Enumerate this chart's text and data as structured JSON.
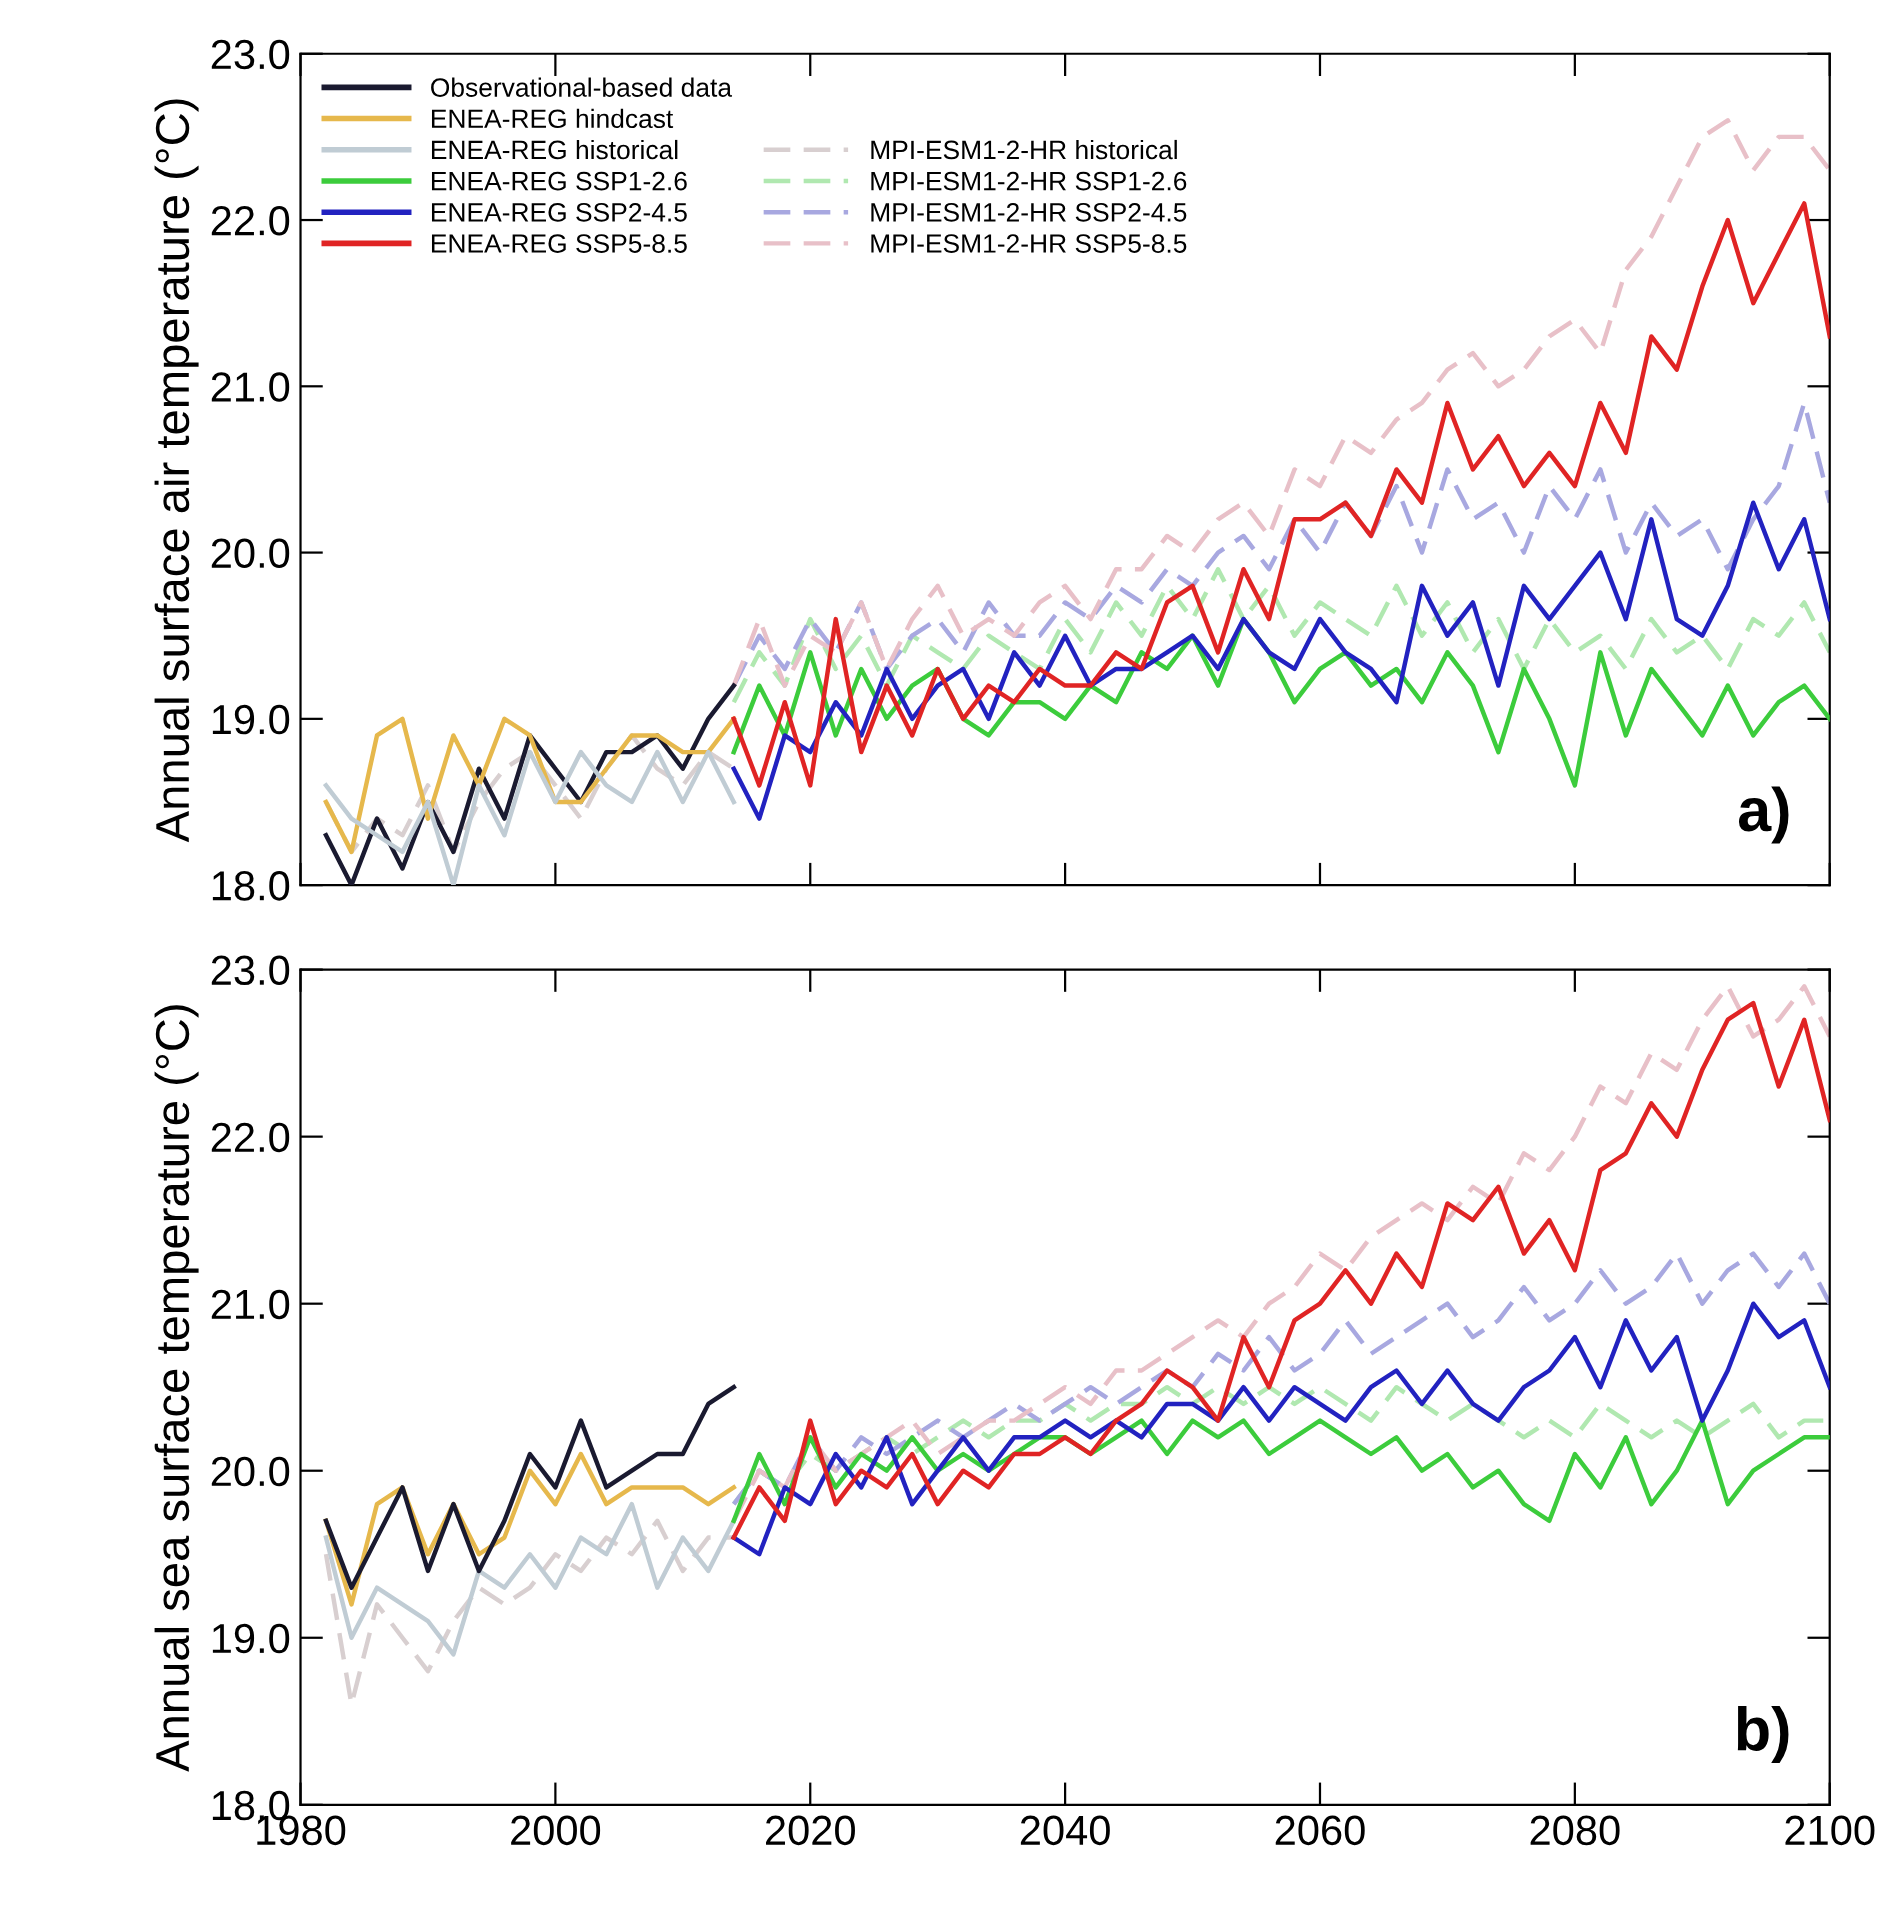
{
  "chart_data": [
    {
      "type": "line",
      "ylabel": "Annual surface air temperature (°C)",
      "xlim": [
        1980,
        2100
      ],
      "xticks": [
        1980,
        2000,
        2020,
        2040,
        2060,
        2080,
        2100
      ],
      "ylim": [
        18.0,
        23.0
      ],
      "yticks": [
        {
          "value": 18,
          "label": "18.0"
        },
        {
          "value": 19,
          "label": "19.0"
        },
        {
          "value": 20,
          "label": "20.0"
        },
        {
          "value": 21,
          "label": "21.0"
        },
        {
          "value": 22,
          "label": "22.0"
        },
        {
          "value": 23,
          "label": "23.0"
        }
      ],
      "tick_labels": "y",
      "grid": false,
      "legend": "top left",
      "annotations": [
        "a)"
      ],
      "x": [
        2014,
        2016,
        2018,
        2020,
        2022,
        2024,
        2026,
        2028,
        2030,
        2032,
        2034,
        2036,
        2038,
        2040,
        2042,
        2044,
        2046,
        2048,
        2050,
        2052,
        2054,
        2056,
        2058,
        2060,
        2062,
        2064,
        2066,
        2068,
        2070,
        2072,
        2074,
        2076,
        2078,
        2080,
        2082,
        2084,
        2086,
        2088,
        2090,
        2092,
        2094,
        2096,
        2098,
        2100
      ],
      "series": [
        {
          "name": "MPI-ESM1-2-HR historical",
          "color": "#d8cfd0",
          "line_style": "dashed",
          "x": [
            1982,
            1984,
            1986,
            1988,
            1990,
            1992,
            1994,
            1996,
            1998,
            2000,
            2002,
            2004,
            2006,
            2008,
            2010,
            2012,
            2014
          ],
          "values": [
            18.5,
            18.2,
            18.4,
            18.3,
            18.6,
            18.2,
            18.5,
            18.7,
            18.8,
            18.6,
            18.4,
            18.7,
            18.9,
            18.7,
            18.6,
            18.8,
            18.7
          ]
        },
        {
          "name": "MPI-ESM1-2-HR SSP1-2.6",
          "color": "#b0e8b0",
          "line_style": "dashed",
          "values": [
            19.1,
            19.4,
            19.2,
            19.6,
            19.3,
            19.5,
            19.2,
            19.5,
            19.4,
            19.3,
            19.5,
            19.4,
            19.3,
            19.6,
            19.4,
            19.7,
            19.5,
            19.8,
            19.6,
            19.9,
            19.6,
            19.8,
            19.5,
            19.7,
            19.6,
            19.5,
            19.8,
            19.5,
            19.7,
            19.4,
            19.6,
            19.3,
            19.6,
            19.4,
            19.5,
            19.3,
            19.6,
            19.4,
            19.5,
            19.3,
            19.6,
            19.5,
            19.7,
            19.4
          ]
        },
        {
          "name": "MPI-ESM1-2-HR SSP2-4.5",
          "color": "#a8a8e0",
          "line_style": "dashed",
          "values": [
            19.2,
            19.5,
            19.3,
            19.6,
            19.4,
            19.7,
            19.3,
            19.5,
            19.6,
            19.4,
            19.7,
            19.5,
            19.5,
            19.7,
            19.6,
            19.8,
            19.7,
            19.9,
            19.8,
            20.0,
            20.1,
            19.9,
            20.2,
            20.0,
            20.3,
            20.1,
            20.4,
            20.0,
            20.5,
            20.2,
            20.3,
            20.0,
            20.4,
            20.2,
            20.5,
            20.0,
            20.3,
            20.1,
            20.2,
            19.9,
            20.2,
            20.4,
            20.9,
            20.3
          ]
        },
        {
          "name": "MPI-ESM1-2-HR SSP5-8.5",
          "color": "#e8c0c8",
          "line_style": "dashed",
          "values": [
            19.2,
            19.6,
            19.2,
            19.5,
            19.4,
            19.7,
            19.3,
            19.6,
            19.8,
            19.5,
            19.6,
            19.5,
            19.7,
            19.8,
            19.6,
            19.9,
            19.9,
            20.1,
            20.0,
            20.2,
            20.3,
            20.1,
            20.5,
            20.4,
            20.7,
            20.6,
            20.8,
            20.9,
            21.1,
            21.2,
            21.0,
            21.1,
            21.3,
            21.4,
            21.2,
            21.7,
            21.9,
            22.2,
            22.5,
            22.6,
            22.3,
            22.5,
            22.5,
            22.3
          ]
        },
        {
          "name": "Observational-based data",
          "color": "#1a1a30",
          "line_style": "solid",
          "x": [
            1982,
            1984,
            1986,
            1988,
            1990,
            1992,
            1994,
            1996,
            1998,
            2000,
            2002,
            2004,
            2006,
            2008,
            2010,
            2012,
            2014
          ],
          "values": [
            18.3,
            18.0,
            18.4,
            18.1,
            18.5,
            18.2,
            18.7,
            18.4,
            18.9,
            18.7,
            18.5,
            18.8,
            18.8,
            18.9,
            18.7,
            19.0,
            19.2
          ]
        },
        {
          "name": "ENEA-REG hindcast",
          "color": "#e6b84c",
          "line_style": "solid",
          "x": [
            1982,
            1984,
            1986,
            1988,
            1990,
            1992,
            1994,
            1996,
            1998,
            2000,
            2002,
            2004,
            2006,
            2008,
            2010,
            2012,
            2014
          ],
          "values": [
            18.5,
            18.2,
            18.9,
            19.0,
            18.4,
            18.9,
            18.6,
            19.0,
            18.9,
            18.5,
            18.5,
            18.7,
            18.9,
            18.9,
            18.8,
            18.8,
            19.0
          ]
        },
        {
          "name": "ENEA-REG historical",
          "color": "#c0ccd4",
          "line_style": "solid",
          "x": [
            1982,
            1984,
            1986,
            1988,
            1990,
            1992,
            1994,
            1996,
            1998,
            2000,
            2002,
            2004,
            2006,
            2008,
            2010,
            2012,
            2014
          ],
          "values": [
            18.6,
            18.4,
            18.3,
            18.2,
            18.5,
            18.0,
            18.6,
            18.3,
            18.8,
            18.5,
            18.8,
            18.6,
            18.5,
            18.8,
            18.5,
            18.8,
            18.5
          ]
        },
        {
          "name": "ENEA-REG SSP1-2.6",
          "color": "#3ccc3c",
          "line_style": "solid",
          "values": [
            18.8,
            19.2,
            18.9,
            19.4,
            18.9,
            19.3,
            19.0,
            19.2,
            19.3,
            19.0,
            18.9,
            19.1,
            19.1,
            19.0,
            19.2,
            19.1,
            19.4,
            19.3,
            19.5,
            19.2,
            19.6,
            19.4,
            19.1,
            19.3,
            19.4,
            19.2,
            19.3,
            19.1,
            19.4,
            19.2,
            18.8,
            19.3,
            19.0,
            18.6,
            19.4,
            18.9,
            19.3,
            19.1,
            18.9,
            19.2,
            18.9,
            19.1,
            19.2,
            19.0
          ]
        },
        {
          "name": "ENEA-REG SSP2-4.5",
          "color": "#2222c0",
          "line_style": "solid",
          "values": [
            18.7,
            18.4,
            18.9,
            18.8,
            19.1,
            18.9,
            19.3,
            19.0,
            19.2,
            19.3,
            19.0,
            19.4,
            19.2,
            19.5,
            19.2,
            19.3,
            19.3,
            19.4,
            19.5,
            19.3,
            19.6,
            19.4,
            19.3,
            19.6,
            19.4,
            19.3,
            19.1,
            19.8,
            19.5,
            19.7,
            19.2,
            19.8,
            19.6,
            19.8,
            20.0,
            19.6,
            20.2,
            19.6,
            19.5,
            19.8,
            20.3,
            19.9,
            20.2,
            19.6
          ]
        },
        {
          "name": "ENEA-REG SSP5-8.5",
          "color": "#e02424",
          "line_style": "solid",
          "values": [
            19.0,
            18.6,
            19.1,
            18.6,
            19.6,
            18.8,
            19.2,
            18.9,
            19.3,
            19.0,
            19.2,
            19.1,
            19.3,
            19.2,
            19.2,
            19.4,
            19.3,
            19.7,
            19.8,
            19.4,
            19.9,
            19.6,
            20.2,
            20.2,
            20.3,
            20.1,
            20.5,
            20.3,
            20.9,
            20.5,
            20.7,
            20.4,
            20.6,
            20.4,
            20.9,
            20.6,
            21.3,
            21.1,
            21.6,
            22.0,
            21.5,
            21.8,
            22.1,
            21.3
          ]
        }
      ]
    },
    {
      "type": "line",
      "ylabel": "Annual sea surface temperature (°C)",
      "xlim": [
        1980,
        2100
      ],
      "xticks": [
        1980,
        2000,
        2020,
        2040,
        2060,
        2080,
        2100
      ],
      "ylim": [
        18.0,
        23.0
      ],
      "yticks": [
        {
          "value": 18,
          "label": "18.0"
        },
        {
          "value": 19,
          "label": "19.0"
        },
        {
          "value": 20,
          "label": "20.0"
        },
        {
          "value": 21,
          "label": "21.0"
        },
        {
          "value": 22,
          "label": "22.0"
        },
        {
          "value": 23,
          "label": "23.0"
        }
      ],
      "grid": false,
      "legend": false,
      "annotations": [
        "b)"
      ],
      "x": [
        2014,
        2016,
        2018,
        2020,
        2022,
        2024,
        2026,
        2028,
        2030,
        2032,
        2034,
        2036,
        2038,
        2040,
        2042,
        2044,
        2046,
        2048,
        2050,
        2052,
        2054,
        2056,
        2058,
        2060,
        2062,
        2064,
        2066,
        2068,
        2070,
        2072,
        2074,
        2076,
        2078,
        2080,
        2082,
        2084,
        2086,
        2088,
        2090,
        2092,
        2094,
        2096,
        2098,
        2100
      ],
      "series": [
        {
          "color": "#d8cfd0",
          "line_style": "dashed",
          "x": [
            1982,
            1984,
            1986,
            1988,
            1990,
            1992,
            1994,
            1996,
            1998,
            2000,
            2002,
            2004,
            2006,
            2008,
            2010,
            2012,
            2014
          ],
          "values": [
            19.5,
            18.6,
            19.2,
            19.0,
            18.8,
            19.1,
            19.3,
            19.2,
            19.3,
            19.5,
            19.4,
            19.6,
            19.5,
            19.7,
            19.4,
            19.6,
            19.6
          ]
        },
        {
          "color": "#b0e8b0",
          "line_style": "dashed",
          "values": [
            19.8,
            20.0,
            19.9,
            20.1,
            20.0,
            20.1,
            20.2,
            20.1,
            20.2,
            20.3,
            20.2,
            20.3,
            20.3,
            20.4,
            20.3,
            20.4,
            20.4,
            20.5,
            20.4,
            20.5,
            20.4,
            20.5,
            20.4,
            20.5,
            20.4,
            20.3,
            20.5,
            20.4,
            20.3,
            20.4,
            20.3,
            20.2,
            20.3,
            20.2,
            20.4,
            20.3,
            20.2,
            20.3,
            20.2,
            20.3,
            20.4,
            20.2,
            20.3,
            20.3
          ]
        },
        {
          "color": "#a8a8e0",
          "line_style": "dashed",
          "values": [
            19.8,
            20.0,
            19.9,
            20.2,
            20.0,
            20.2,
            20.1,
            20.2,
            20.3,
            20.2,
            20.3,
            20.4,
            20.3,
            20.4,
            20.5,
            20.4,
            20.5,
            20.6,
            20.5,
            20.7,
            20.6,
            20.8,
            20.6,
            20.7,
            20.9,
            20.7,
            20.8,
            20.9,
            21.0,
            20.8,
            20.9,
            21.1,
            20.9,
            21.0,
            21.2,
            21.0,
            21.1,
            21.3,
            21.0,
            21.2,
            21.3,
            21.1,
            21.3,
            21.0
          ]
        },
        {
          "color": "#e8c0c8",
          "line_style": "dashed",
          "values": [
            19.7,
            20.0,
            19.9,
            20.2,
            20.0,
            20.1,
            20.2,
            20.3,
            20.1,
            20.2,
            20.3,
            20.3,
            20.4,
            20.5,
            20.4,
            20.6,
            20.6,
            20.7,
            20.8,
            20.9,
            20.8,
            21.0,
            21.1,
            21.3,
            21.2,
            21.4,
            21.5,
            21.6,
            21.5,
            21.7,
            21.6,
            21.9,
            21.8,
            22.0,
            22.3,
            22.2,
            22.5,
            22.4,
            22.7,
            22.9,
            22.6,
            22.7,
            22.9,
            22.6
          ]
        },
        {
          "color": "#c0ccd4",
          "line_style": "solid",
          "x": [
            1982,
            1984,
            1986,
            1988,
            1990,
            1992,
            1994,
            1996,
            1998,
            2000,
            2002,
            2004,
            2006,
            2008,
            2010,
            2012,
            2014
          ],
          "values": [
            19.6,
            19.0,
            19.3,
            19.2,
            19.1,
            18.9,
            19.4,
            19.3,
            19.5,
            19.3,
            19.6,
            19.5,
            19.8,
            19.3,
            19.6,
            19.4,
            19.7
          ]
        },
        {
          "color": "#e6b84c",
          "line_style": "solid",
          "x": [
            1982,
            1984,
            1986,
            1988,
            1990,
            1992,
            1994,
            1996,
            1998,
            2000,
            2002,
            2004,
            2006,
            2008,
            2010,
            2012,
            2014
          ],
          "values": [
            19.7,
            19.2,
            19.8,
            19.9,
            19.5,
            19.8,
            19.5,
            19.6,
            20.0,
            19.8,
            20.1,
            19.8,
            19.9,
            19.9,
            19.9,
            19.8,
            19.9
          ]
        },
        {
          "color": "#1a1a30",
          "line_style": "solid",
          "x": [
            1982,
            1984,
            1986,
            1988,
            1990,
            1992,
            1994,
            1996,
            1998,
            2000,
            2002,
            2004,
            2006,
            2008,
            2010,
            2012,
            2014
          ],
          "values": [
            19.7,
            19.3,
            19.6,
            19.9,
            19.4,
            19.8,
            19.4,
            19.7,
            20.1,
            19.9,
            20.3,
            19.9,
            20.0,
            20.1,
            20.1,
            20.4,
            20.5
          ]
        },
        {
          "color": "#3ccc3c",
          "line_style": "solid",
          "values": [
            19.7,
            20.1,
            19.8,
            20.2,
            19.9,
            20.1,
            20.0,
            20.2,
            20.0,
            20.1,
            20.0,
            20.1,
            20.2,
            20.2,
            20.1,
            20.2,
            20.3,
            20.1,
            20.3,
            20.2,
            20.3,
            20.1,
            20.2,
            20.3,
            20.2,
            20.1,
            20.2,
            20.0,
            20.1,
            19.9,
            20.0,
            19.8,
            19.7,
            20.1,
            19.9,
            20.2,
            19.8,
            20.0,
            20.3,
            19.8,
            20.0,
            20.1,
            20.2,
            20.2
          ]
        },
        {
          "color": "#2222c0",
          "line_style": "solid",
          "values": [
            19.6,
            19.5,
            19.9,
            19.8,
            20.1,
            19.9,
            20.2,
            19.8,
            20.0,
            20.2,
            20.0,
            20.2,
            20.2,
            20.3,
            20.2,
            20.3,
            20.2,
            20.4,
            20.4,
            20.3,
            20.5,
            20.3,
            20.5,
            20.4,
            20.3,
            20.5,
            20.6,
            20.4,
            20.6,
            20.4,
            20.3,
            20.5,
            20.6,
            20.8,
            20.5,
            20.9,
            20.6,
            20.8,
            20.3,
            20.6,
            21.0,
            20.8,
            20.9,
            20.5
          ]
        },
        {
          "color": "#e02424",
          "line_style": "solid",
          "values": [
            19.6,
            19.9,
            19.7,
            20.3,
            19.8,
            20.0,
            19.9,
            20.1,
            19.8,
            20.0,
            19.9,
            20.1,
            20.1,
            20.2,
            20.1,
            20.3,
            20.4,
            20.6,
            20.5,
            20.3,
            20.8,
            20.5,
            20.9,
            21.0,
            21.2,
            21.0,
            21.3,
            21.1,
            21.6,
            21.5,
            21.7,
            21.3,
            21.5,
            21.2,
            21.8,
            21.9,
            22.2,
            22.0,
            22.4,
            22.7,
            22.8,
            22.3,
            22.7,
            22.1
          ]
        }
      ]
    }
  ]
}
